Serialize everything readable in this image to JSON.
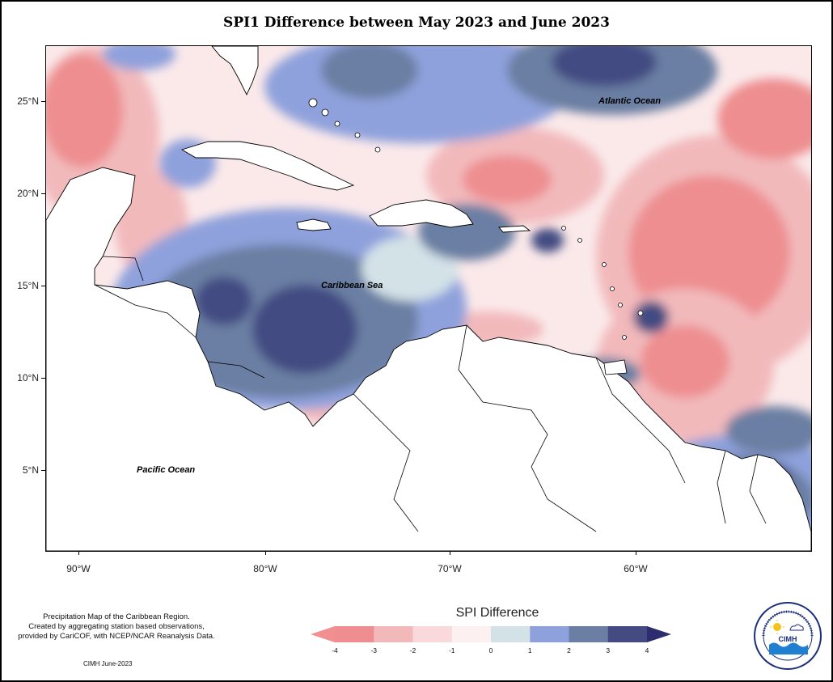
{
  "map": {
    "title": "SPI1 Difference between May 2023 and June 2023",
    "lat_ticks": [
      "25°N",
      "20°N",
      "15°N",
      "10°N",
      "5°N"
    ],
    "lon_ticks": [
      "90°W",
      "80°W",
      "70°W",
      "60°W"
    ],
    "labels": {
      "atlantic": "Atlantic Ocean",
      "caribbean": "Caribbean Sea",
      "pacific": "Pacific Ocean"
    },
    "extent": {
      "lon_min": -92,
      "lon_max": -50,
      "lat_min": 0.5,
      "lat_max": 28
    }
  },
  "legend": {
    "title": "SPI Difference",
    "ticks": [
      "-4",
      "-3",
      "-2",
      "-1",
      "0",
      "1",
      "2",
      "3",
      "4"
    ],
    "colors": [
      "#ee8e90",
      "#f2b9bb",
      "#fad9dc",
      "#fdf0f0",
      "#d3e2e7",
      "#8fa1dc",
      "#6a7fa3",
      "#434b82"
    ],
    "arrow_low_color": "#f29091",
    "arrow_high_color": "#2b2d6e"
  },
  "notes": {
    "line1": "Precipitation Map of the Caribbean Region.",
    "line2": "Created by aggregating station based observations,",
    "line3": "provided by CariCOF, with NCEP/NCAR Reanalysis Data.",
    "credit": "CIMH June-2023"
  },
  "logo": {
    "text": "CIMH",
    "ring_text": "Caribbean Institute for Meteorology and Hydrology"
  }
}
